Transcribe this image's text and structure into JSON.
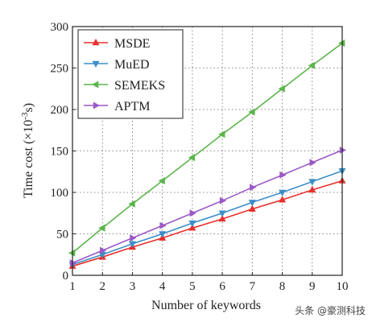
{
  "chart_data": {
    "type": "line",
    "x": [
      1,
      2,
      3,
      4,
      5,
      6,
      7,
      8,
      9,
      10
    ],
    "xlabel": "Number of keywords",
    "ylabel": "Time cost (×10",
    "ylabel_exp": "-3",
    "ylabel_suffix": "s)",
    "xlim": [
      1,
      10
    ],
    "ylim": [
      0,
      300
    ],
    "x_ticks": [
      1,
      2,
      3,
      4,
      5,
      6,
      7,
      8,
      9,
      10
    ],
    "y_ticks": [
      0,
      50,
      100,
      150,
      200,
      250,
      300
    ],
    "grid": true,
    "legend_position": "top-left",
    "series": [
      {
        "name": "MSDE",
        "color": "#e8302c",
        "marker": "triangle-up",
        "values": [
          11,
          22,
          34,
          45,
          57,
          68,
          80,
          91,
          103,
          114
        ]
      },
      {
        "name": "MuED",
        "color": "#3b8ec8",
        "marker": "triangle-down",
        "values": [
          13,
          25,
          38,
          50,
          63,
          75,
          88,
          100,
          113,
          126
        ]
      },
      {
        "name": "SEMEKS",
        "color": "#5ab54b",
        "marker": "triangle-left",
        "values": [
          27,
          57,
          86,
          114,
          142,
          170,
          197,
          225,
          253,
          280
        ]
      },
      {
        "name": "APTM",
        "color": "#9b59c8",
        "marker": "triangle-right",
        "values": [
          15,
          30,
          45,
          60,
          75,
          90,
          106,
          121,
          136,
          151
        ]
      }
    ]
  },
  "watermark": "头条 @豪测科技"
}
